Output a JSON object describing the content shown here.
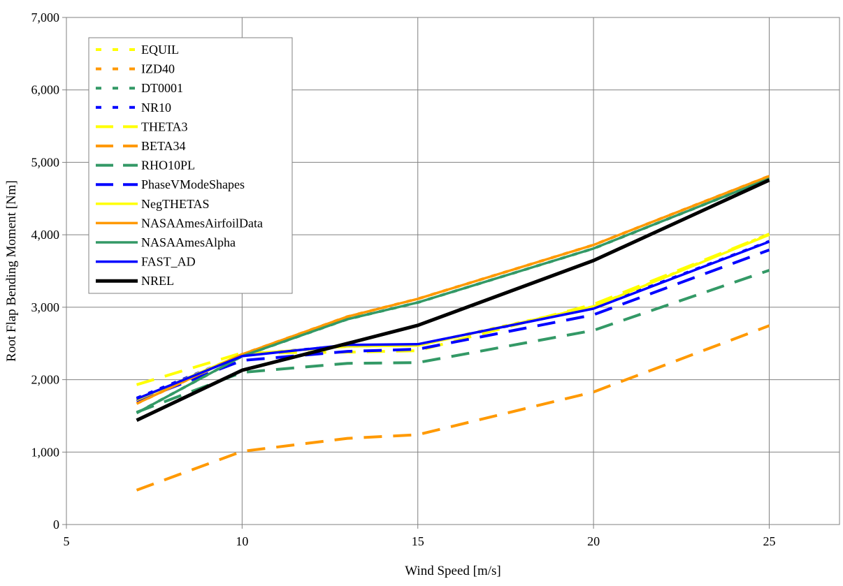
{
  "chart_data": {
    "type": "line",
    "title": "",
    "xlabel": "Wind Speed [m/s]",
    "ylabel": "Root Flap Bending Moment [Nm]",
    "xlim": [
      5,
      27
    ],
    "ylim": [
      0,
      7000
    ],
    "xticks": [
      5,
      10,
      15,
      20,
      25
    ],
    "xtick_labels": [
      "5",
      "10",
      "15",
      "20",
      "25"
    ],
    "yticks": [
      0,
      1000,
      2000,
      3000,
      4000,
      5000,
      6000,
      7000
    ],
    "ytick_labels": [
      "0",
      "1,000",
      "2,000",
      "3,000",
      "4,000",
      "5,000",
      "6,000",
      "7,000"
    ],
    "grid": true,
    "legend_position": "top-left",
    "x": [
      7,
      10,
      13,
      15,
      20,
      25
    ],
    "series": [
      {
        "name": "EQUIL",
        "color": "#ffff00",
        "style": "dotted",
        "values": [
          1720,
          2350,
          2460,
          2480,
          3010,
          4010
        ]
      },
      {
        "name": "IZD40",
        "color": "#ff9900",
        "style": "dotted",
        "values": [
          1670,
          2350,
          2870,
          3115,
          3860,
          4810
        ]
      },
      {
        "name": "DT0001",
        "color": "#339966",
        "style": "dotted",
        "values": [
          1540,
          2325,
          2835,
          3065,
          3810,
          4775
        ]
      },
      {
        "name": "NR10",
        "color": "#0000ff",
        "style": "dotted",
        "values": [
          1745,
          2340,
          2470,
          2480,
          2990,
          3910
        ]
      },
      {
        "name": "THETA3",
        "color": "#ffff00",
        "style": "dashed",
        "values": [
          1930,
          2370,
          2380,
          2400,
          3040,
          4010
        ]
      },
      {
        "name": "BETA34",
        "color": "#ff9900",
        "style": "dashed",
        "values": [
          475,
          1010,
          1190,
          1240,
          1830,
          2745
        ]
      },
      {
        "name": "RHO10PL",
        "color": "#339966",
        "style": "dashed",
        "values": [
          1550,
          2100,
          2225,
          2235,
          2680,
          3510
        ]
      },
      {
        "name": "PhaseVModeShapes",
        "color": "#0000ff",
        "style": "dashed",
        "values": [
          1705,
          2265,
          2390,
          2420,
          2895,
          3790
        ]
      },
      {
        "name": "NegTHETAS",
        "color": "#ffff00",
        "style": "solid",
        "values": [
          1720,
          2350,
          2460,
          2470,
          3010,
          4000
        ]
      },
      {
        "name": "NASAAmesAirfoilData",
        "color": "#ff9900",
        "style": "solid",
        "values": [
          1670,
          2350,
          2870,
          3115,
          3860,
          4810
        ]
      },
      {
        "name": "NASAAmesAlpha",
        "color": "#339966",
        "style": "solid",
        "values": [
          1540,
          2325,
          2835,
          3065,
          3810,
          4775
        ]
      },
      {
        "name": "FAST_AD",
        "color": "#0000ff",
        "style": "solid",
        "values": [
          1735,
          2325,
          2480,
          2490,
          2980,
          3905
        ]
      },
      {
        "name": "NREL",
        "color": "#000000",
        "style": "solid-thick",
        "values": [
          1440,
          2130,
          2500,
          2750,
          3645,
          4755
        ]
      }
    ]
  }
}
